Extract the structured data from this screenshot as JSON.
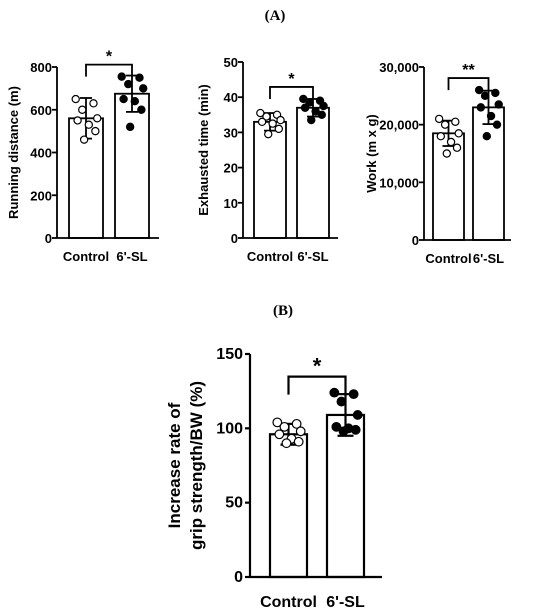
{
  "figure": {
    "panel_a_label": "(A)",
    "panel_b_label": "(B)"
  },
  "chart_data": [
    {
      "type": "bar",
      "panel": "A",
      "categories": [
        "Control",
        "6'-SL"
      ],
      "ylabel": "Running distance (m)",
      "ylim": [
        0,
        800
      ],
      "yticks": [
        "0",
        "200",
        "400",
        "600",
        "800"
      ],
      "means": [
        560,
        675
      ],
      "sd": [
        95,
        85
      ],
      "points": [
        [
          650,
          630,
          600,
          560,
          550,
          530,
          500,
          460
        ],
        [
          755,
          750,
          720,
          700,
          650,
          640,
          600,
          520
        ]
      ],
      "significance": "*",
      "fills": [
        "#ffffff",
        "#000000"
      ]
    },
    {
      "type": "bar",
      "panel": "A",
      "categories": [
        "Control",
        "6'-SL"
      ],
      "ylabel": "Exhausted time (min)",
      "ylim": [
        0,
        50
      ],
      "yticks": [
        "0",
        "10",
        "20",
        "30",
        "40",
        "50"
      ],
      "means": [
        33,
        37
      ],
      "sd": [
        2.5,
        2.5
      ],
      "points": [
        [
          35.5,
          35,
          34.5,
          33.5,
          33,
          32.5,
          31,
          29.5
        ],
        [
          39.5,
          39,
          38.5,
          37.5,
          37,
          36,
          35,
          33.5
        ]
      ],
      "significance": "*",
      "fills": [
        "#ffffff",
        "#000000"
      ]
    },
    {
      "type": "bar",
      "panel": "A",
      "categories": [
        "Control",
        "6'-SL"
      ],
      "ylabel": "Work (m x g)",
      "ylim": [
        0,
        30000
      ],
      "yticks": [
        "0",
        "10,000",
        "20,000",
        "30,000"
      ],
      "means": [
        18500,
        23000
      ],
      "sd": [
        2200,
        2900
      ],
      "points": [
        [
          21000,
          20500,
          20000,
          18500,
          18000,
          17000,
          16000,
          15000
        ],
        [
          26000,
          25500,
          25000,
          23500,
          23000,
          21500,
          20000,
          18000
        ]
      ],
      "significance": "**",
      "fills": [
        "#ffffff",
        "#000000"
      ]
    },
    {
      "type": "bar",
      "panel": "B",
      "categories": [
        "Control",
        "6'-SL"
      ],
      "ylabel": "Increase rate of grip strength/BW (%)",
      "ylabel_lines": [
        "Increase rate of",
        "grip strength/BW (%)"
      ],
      "ylim": [
        0,
        150
      ],
      "yticks": [
        "0",
        "50",
        "100",
        "150"
      ],
      "means": [
        96,
        109
      ],
      "sd": [
        7,
        14
      ],
      "points": [
        [
          104,
          103,
          101,
          98,
          96,
          93,
          91,
          90
        ],
        [
          124,
          123,
          118,
          109,
          101,
          100,
          99,
          98
        ]
      ],
      "significance": "*",
      "fills": [
        "#ffffff",
        "#000000"
      ]
    }
  ]
}
